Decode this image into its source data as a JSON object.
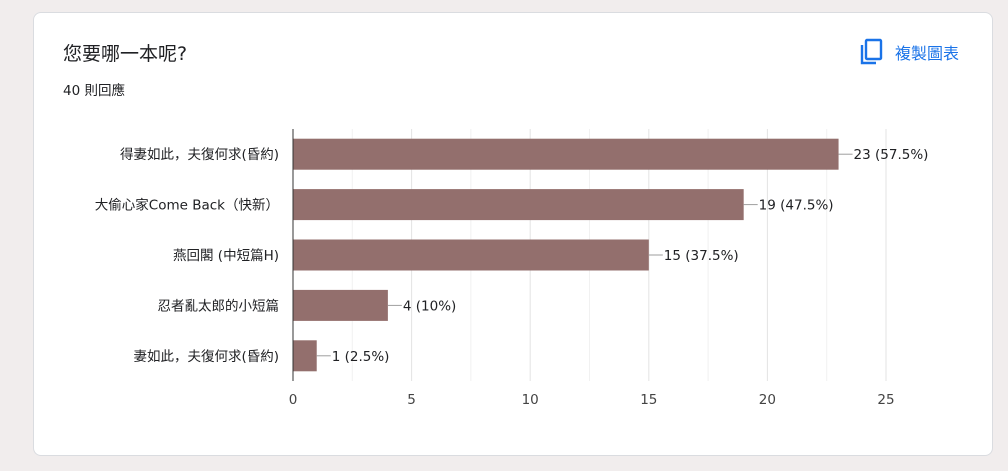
{
  "card": {
    "title": "您要哪一本呢?",
    "response_count": "40 則回應",
    "copy_button_label": "複製圖表",
    "copy_icon": "copy-icon"
  },
  "colors": {
    "bar": "#936f6d",
    "accent": "#1a73e8",
    "text": "#202124",
    "grid": "#e8e8e8"
  },
  "chart_data": {
    "type": "bar",
    "orientation": "horizontal",
    "categories": [
      "得妻如此，夫復何求(昏約)",
      "大偷心家Come Back（快新）",
      "燕回閣 (中短篇H)",
      "忍者亂太郎的小短篇",
      "妻如此，夫復何求(昏約)"
    ],
    "values": [
      23,
      19,
      15,
      4,
      1
    ],
    "data_labels": [
      "23 (57.5%)",
      "19 (47.5%)",
      "15 (37.5%)",
      "4 (10%)",
      "1 (2.5%)"
    ],
    "xlim": [
      0,
      25
    ],
    "xticks": [
      0,
      5,
      10,
      15,
      20,
      25
    ],
    "grid": true
  }
}
